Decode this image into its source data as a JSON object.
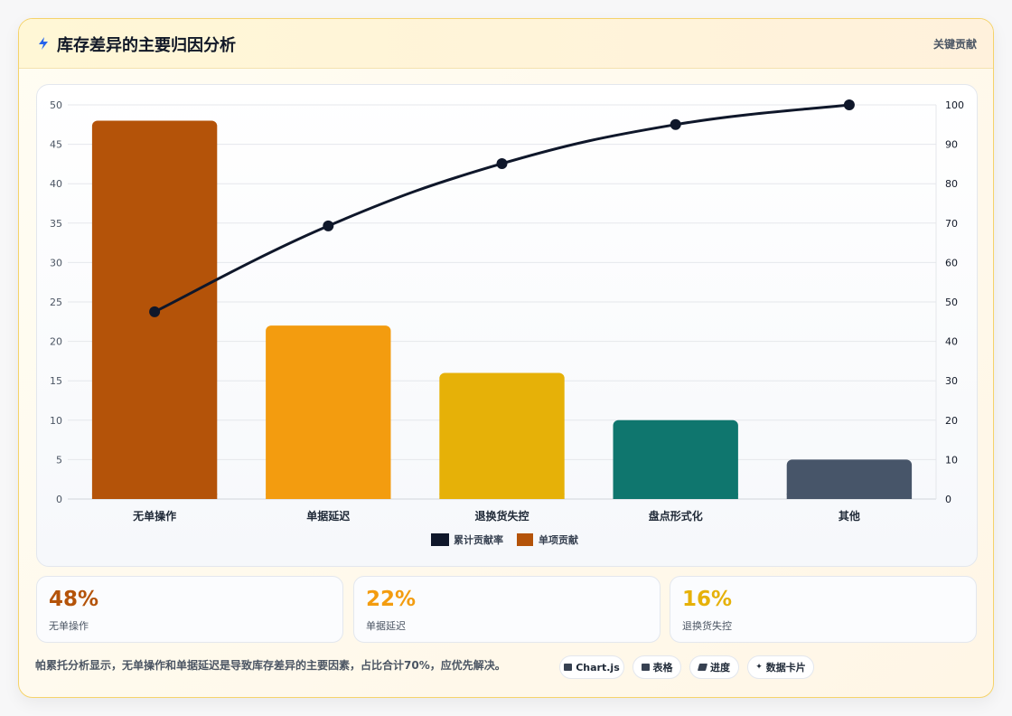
{
  "header": {
    "title": "库存差异的主要归因分析",
    "tag": "关键贡献"
  },
  "chart_data": {
    "type": "bar",
    "categories": [
      "无单操作",
      "单据延迟",
      "退换货失控",
      "盘点形式化",
      "其他"
    ],
    "series": [
      {
        "name": "单项贡献",
        "type": "bar",
        "axis": "left",
        "values": [
          48,
          22,
          16,
          10,
          5
        ]
      },
      {
        "name": "累计贡献率",
        "type": "line",
        "axis": "right",
        "values": [
          47.5,
          69.3,
          85.1,
          95.0,
          100.0
        ]
      }
    ],
    "bar_colors": [
      "#b45309",
      "#f39c0f",
      "#e6b108",
      "#0f766e",
      "#475569"
    ],
    "line_color": "#0f172a",
    "ylim_left": [
      0,
      50
    ],
    "yticks_left": [
      0,
      5,
      10,
      15,
      20,
      25,
      30,
      35,
      40,
      45,
      50
    ],
    "ylim_right": [
      0,
      100
    ],
    "yticks_right": [
      0,
      10,
      20,
      30,
      40,
      50,
      60,
      70,
      80,
      90,
      100
    ],
    "legend": [
      "累计贡献率",
      "单项贡献"
    ],
    "legend_position": "bottom",
    "grid": true
  },
  "stats": [
    {
      "value": "48%",
      "label": "无单操作",
      "color": "#b45309"
    },
    {
      "value": "22%",
      "label": "单据延迟",
      "color": "#f39c0f"
    },
    {
      "value": "16%",
      "label": "退换货失控",
      "color": "#e6b108"
    }
  ],
  "footer": {
    "text": "帕累托分析显示，无单操作和单据延迟是导致库存差异的主要因素，占比合计70%，应优先解决。",
    "pills": [
      {
        "label": "Chart.js",
        "icon": "chart-icon"
      },
      {
        "label": "表格",
        "icon": "table-icon"
      },
      {
        "label": "进度",
        "icon": "progress-icon"
      },
      {
        "label": "数据卡片",
        "icon": "sparkle-icon"
      }
    ]
  }
}
